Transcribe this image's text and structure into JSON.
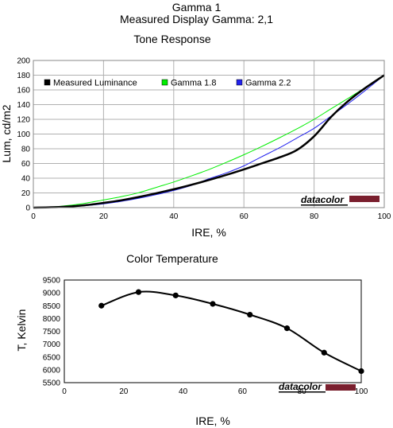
{
  "page": {
    "title": "Gamma 1",
    "subtitle": "Measured Display Gamma: 2,1"
  },
  "brand": {
    "logo_text": "datacolor",
    "bar_color": "#7a1f2e"
  },
  "chart_data": [
    {
      "type": "line",
      "title": "Tone Response",
      "xlabel": "IRE, %",
      "ylabel": "Lum, cd/m2",
      "xlim": [
        0,
        100
      ],
      "ylim": [
        0,
        200
      ],
      "xticks": [
        0,
        20,
        40,
        60,
        80,
        100
      ],
      "yticks": [
        0,
        20,
        40,
        60,
        80,
        100,
        120,
        140,
        160,
        180,
        200
      ],
      "grid": true,
      "legend_position": "top",
      "series": [
        {
          "name": "Measured Luminance",
          "color": "#000000",
          "x": [
            0,
            5,
            10,
            15,
            20,
            25,
            30,
            35,
            40,
            45,
            50,
            55,
            60,
            65,
            70,
            75,
            80,
            85,
            90,
            95,
            100
          ],
          "y": [
            0,
            0.5,
            1.5,
            3.5,
            6.5,
            10,
            14.5,
            19.5,
            25,
            31,
            37.5,
            44.5,
            52,
            60,
            68,
            78,
            97,
            124,
            146,
            164,
            180
          ]
        },
        {
          "name": "Gamma 1.8",
          "color": "#00ee00",
          "x": [
            0,
            5,
            10,
            15,
            20,
            25,
            30,
            35,
            40,
            45,
            50,
            55,
            60,
            65,
            70,
            75,
            80,
            85,
            90,
            95,
            100
          ],
          "y": [
            0,
            0.8,
            2.9,
            6.2,
            10.4,
            14.9,
            20.2,
            27.5,
            34.8,
            43,
            51.7,
            61.5,
            71.9,
            82.9,
            94.6,
            106.8,
            120,
            134.8,
            149.4,
            164.5,
            180
          ]
        },
        {
          "name": "Gamma 2.2",
          "color": "#2222ee",
          "x": [
            0,
            5,
            10,
            15,
            20,
            25,
            30,
            35,
            40,
            45,
            50,
            55,
            60,
            65,
            70,
            75,
            80,
            85,
            90,
            95,
            100
          ],
          "y": [
            0,
            0.2,
            1.1,
            2.7,
            5.2,
            8.5,
            12.6,
            17.6,
            23.4,
            30.2,
            39.2,
            47.2,
            56.8,
            69,
            81,
            94.3,
            107.8,
            125,
            142.4,
            160.8,
            180
          ]
        }
      ]
    },
    {
      "type": "line",
      "title": "Color Temperature",
      "xlabel": "IRE, %",
      "ylabel": "T, Kelvin",
      "xlim": [
        0,
        100
      ],
      "ylim": [
        5500,
        9500
      ],
      "xticks": [
        0,
        20,
        40,
        60,
        80,
        100
      ],
      "yticks": [
        5500,
        6000,
        6500,
        7000,
        7500,
        8000,
        8500,
        9000,
        9500
      ],
      "grid": false,
      "smooth": true,
      "series": [
        {
          "color": "#000000",
          "markers": true,
          "x": [
            12.5,
            25,
            37.5,
            50,
            62.5,
            75,
            87.5,
            100
          ],
          "y": [
            8500,
            9030,
            8900,
            8570,
            8150,
            7620,
            6670,
            5950
          ]
        }
      ]
    }
  ]
}
